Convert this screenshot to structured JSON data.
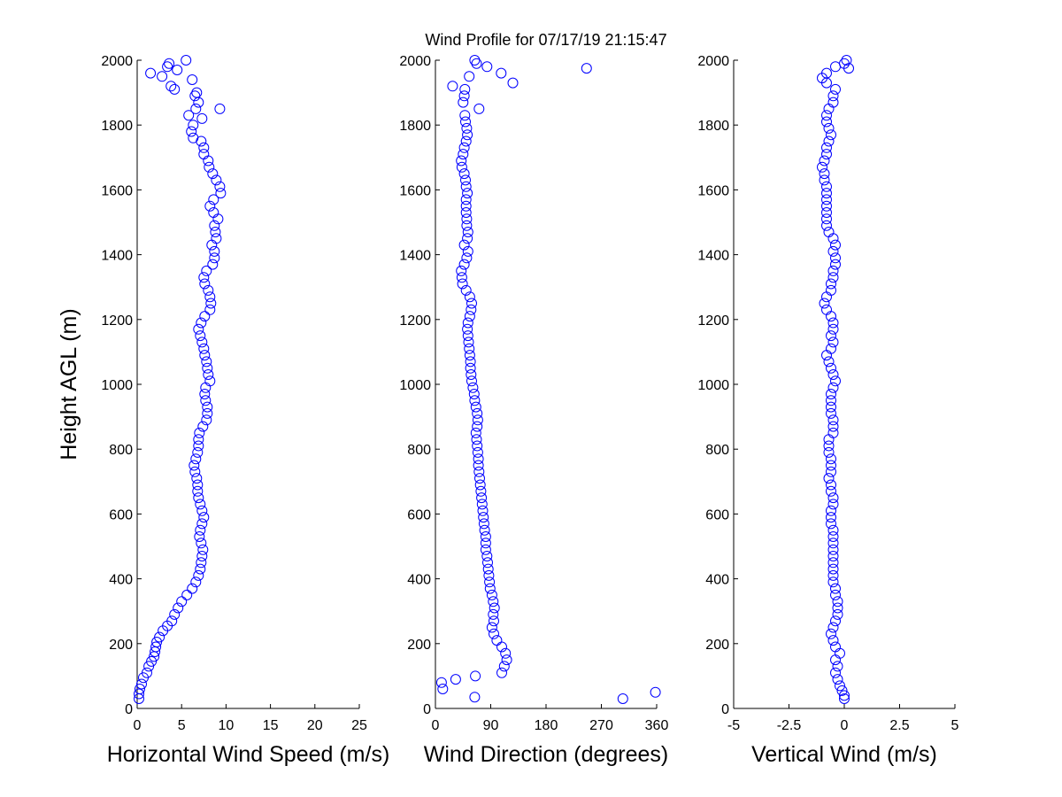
{
  "figure": {
    "title": "Wind Profile for  07/17/19 21:15:47"
  },
  "chart_data": [
    {
      "type": "scatter",
      "xlabel": "Horizontal Wind Speed (m/s)",
      "ylabel": "Height AGL (m)",
      "xlim": [
        0,
        25
      ],
      "ylim": [
        0,
        2000
      ],
      "xticks": [
        "0",
        "5",
        "10",
        "15",
        "20",
        "25"
      ],
      "yticks": [
        "0",
        "200",
        "400",
        "600",
        "800",
        "1000",
        "1200",
        "1400",
        "1600",
        "1800",
        "2000"
      ],
      "grid": false,
      "marker_color": "#0000ff",
      "points": [
        [
          0.2,
          30
        ],
        [
          0.2,
          45
        ],
        [
          0.3,
          60
        ],
        [
          0.5,
          75
        ],
        [
          0.7,
          95
        ],
        [
          1.1,
          110
        ],
        [
          1.3,
          130
        ],
        [
          1.6,
          145
        ],
        [
          1.9,
          160
        ],
        [
          2.0,
          175
        ],
        [
          2.1,
          190
        ],
        [
          2.2,
          205
        ],
        [
          2.5,
          220
        ],
        [
          2.9,
          240
        ],
        [
          3.4,
          255
        ],
        [
          3.9,
          270
        ],
        [
          4.2,
          290
        ],
        [
          4.6,
          310
        ],
        [
          5.0,
          330
        ],
        [
          5.6,
          350
        ],
        [
          6.2,
          370
        ],
        [
          6.6,
          390
        ],
        [
          6.9,
          410
        ],
        [
          7.1,
          430
        ],
        [
          7.2,
          450
        ],
        [
          7.3,
          470
        ],
        [
          7.4,
          490
        ],
        [
          7.2,
          510
        ],
        [
          7.0,
          530
        ],
        [
          7.1,
          550
        ],
        [
          7.3,
          570
        ],
        [
          7.5,
          590
        ],
        [
          7.3,
          610
        ],
        [
          7.1,
          630
        ],
        [
          6.9,
          650
        ],
        [
          6.8,
          670
        ],
        [
          6.8,
          690
        ],
        [
          6.7,
          710
        ],
        [
          6.5,
          730
        ],
        [
          6.4,
          750
        ],
        [
          6.6,
          770
        ],
        [
          6.8,
          790
        ],
        [
          6.9,
          810
        ],
        [
          6.9,
          830
        ],
        [
          7.0,
          850
        ],
        [
          7.4,
          870
        ],
        [
          7.8,
          890
        ],
        [
          7.9,
          910
        ],
        [
          7.9,
          930
        ],
        [
          7.7,
          950
        ],
        [
          7.6,
          970
        ],
        [
          7.7,
          990
        ],
        [
          8.2,
          1010
        ],
        [
          8.0,
          1030
        ],
        [
          7.9,
          1050
        ],
        [
          7.8,
          1070
        ],
        [
          7.6,
          1090
        ],
        [
          7.5,
          1110
        ],
        [
          7.3,
          1130
        ],
        [
          7.1,
          1150
        ],
        [
          6.9,
          1170
        ],
        [
          7.2,
          1190
        ],
        [
          7.6,
          1210
        ],
        [
          8.2,
          1230
        ],
        [
          8.3,
          1250
        ],
        [
          8.2,
          1270
        ],
        [
          8.0,
          1290
        ],
        [
          7.6,
          1310
        ],
        [
          7.5,
          1330
        ],
        [
          7.8,
          1350
        ],
        [
          8.5,
          1370
        ],
        [
          8.7,
          1390
        ],
        [
          8.7,
          1410
        ],
        [
          8.4,
          1430
        ],
        [
          8.9,
          1450
        ],
        [
          8.8,
          1470
        ],
        [
          8.7,
          1490
        ],
        [
          9.1,
          1510
        ],
        [
          8.6,
          1530
        ],
        [
          8.2,
          1550
        ],
        [
          8.6,
          1570
        ],
        [
          9.4,
          1590
        ],
        [
          9.3,
          1610
        ],
        [
          8.9,
          1630
        ],
        [
          8.5,
          1650
        ],
        [
          8.1,
          1670
        ],
        [
          8.0,
          1690
        ],
        [
          7.5,
          1710
        ],
        [
          7.5,
          1730
        ],
        [
          7.2,
          1750
        ],
        [
          6.3,
          1760
        ],
        [
          6.1,
          1780
        ],
        [
          6.3,
          1800
        ],
        [
          7.3,
          1820
        ],
        [
          5.8,
          1830
        ],
        [
          6.6,
          1850
        ],
        [
          9.3,
          1850
        ],
        [
          6.9,
          1870
        ],
        [
          6.5,
          1890
        ],
        [
          6.7,
          1900
        ],
        [
          4.2,
          1910
        ],
        [
          3.8,
          1920
        ],
        [
          6.2,
          1940
        ],
        [
          2.8,
          1950
        ],
        [
          1.5,
          1960
        ],
        [
          4.5,
          1970
        ],
        [
          3.4,
          1980
        ],
        [
          3.6,
          1990
        ],
        [
          5.5,
          2000
        ]
      ]
    },
    {
      "type": "scatter",
      "xlabel": "Wind Direction (degrees)",
      "ylabel": "",
      "xlim": [
        0,
        360
      ],
      "ylim": [
        0,
        2000
      ],
      "xticks": [
        "0",
        "90",
        "180",
        "270",
        "360"
      ],
      "yticks": [
        "0",
        "200",
        "400",
        "600",
        "800",
        "1000",
        "1200",
        "1400",
        "1600",
        "1800",
        "2000"
      ],
      "grid": false,
      "marker_color": "#0000ff",
      "points": [
        [
          64,
          35
        ],
        [
          305,
          30
        ],
        [
          358,
          50
        ],
        [
          12,
          60
        ],
        [
          10,
          80
        ],
        [
          33,
          90
        ],
        [
          65,
          100
        ],
        [
          108,
          110
        ],
        [
          112,
          130
        ],
        [
          116,
          150
        ],
        [
          114,
          170
        ],
        [
          108,
          190
        ],
        [
          100,
          210
        ],
        [
          95,
          230
        ],
        [
          92,
          250
        ],
        [
          95,
          270
        ],
        [
          94,
          290
        ],
        [
          96,
          310
        ],
        [
          94,
          330
        ],
        [
          92,
          350
        ],
        [
          89,
          370
        ],
        [
          88,
          390
        ],
        [
          87,
          410
        ],
        [
          86,
          430
        ],
        [
          85,
          450
        ],
        [
          84,
          470
        ],
        [
          82,
          490
        ],
        [
          82,
          510
        ],
        [
          82,
          530
        ],
        [
          80,
          550
        ],
        [
          79,
          570
        ],
        [
          78,
          590
        ],
        [
          77,
          610
        ],
        [
          76,
          630
        ],
        [
          75,
          650
        ],
        [
          74,
          670
        ],
        [
          73,
          690
        ],
        [
          72,
          710
        ],
        [
          71,
          730
        ],
        [
          70,
          750
        ],
        [
          70,
          770
        ],
        [
          69,
          790
        ],
        [
          68,
          810
        ],
        [
          67,
          830
        ],
        [
          66,
          850
        ],
        [
          68,
          870
        ],
        [
          69,
          890
        ],
        [
          68,
          910
        ],
        [
          66,
          930
        ],
        [
          64,
          950
        ],
        [
          63,
          970
        ],
        [
          61,
          990
        ],
        [
          59,
          1010
        ],
        [
          58,
          1030
        ],
        [
          57,
          1050
        ],
        [
          57,
          1070
        ],
        [
          56,
          1090
        ],
        [
          55,
          1110
        ],
        [
          54,
          1130
        ],
        [
          53,
          1150
        ],
        [
          52,
          1170
        ],
        [
          53,
          1190
        ],
        [
          56,
          1210
        ],
        [
          58,
          1230
        ],
        [
          59,
          1250
        ],
        [
          56,
          1270
        ],
        [
          50,
          1290
        ],
        [
          44,
          1310
        ],
        [
          43,
          1330
        ],
        [
          42,
          1350
        ],
        [
          47,
          1370
        ],
        [
          51,
          1390
        ],
        [
          53,
          1410
        ],
        [
          47,
          1430
        ],
        [
          52,
          1450
        ],
        [
          53,
          1470
        ],
        [
          51,
          1490
        ],
        [
          51,
          1510
        ],
        [
          50,
          1530
        ],
        [
          50,
          1550
        ],
        [
          50,
          1570
        ],
        [
          52,
          1590
        ],
        [
          50,
          1610
        ],
        [
          49,
          1630
        ],
        [
          47,
          1650
        ],
        [
          43,
          1670
        ],
        [
          42,
          1690
        ],
        [
          45,
          1710
        ],
        [
          47,
          1730
        ],
        [
          50,
          1750
        ],
        [
          52,
          1770
        ],
        [
          51,
          1790
        ],
        [
          49,
          1810
        ],
        [
          48,
          1830
        ],
        [
          71,
          1850
        ],
        [
          45,
          1870
        ],
        [
          47,
          1890
        ],
        [
          48,
          1910
        ],
        [
          28,
          1920
        ],
        [
          126,
          1930
        ],
        [
          55,
          1950
        ],
        [
          107,
          1960
        ],
        [
          246,
          1975
        ],
        [
          84,
          1980
        ],
        [
          67,
          1990
        ],
        [
          64,
          2000
        ]
      ]
    },
    {
      "type": "scatter",
      "xlabel": "Vertical Wind (m/s)",
      "ylabel": "",
      "xlim": [
        -5,
        5
      ],
      "ylim": [
        0,
        2000
      ],
      "xticks": [
        "-5",
        "-2.5",
        "0",
        "2.5",
        "5"
      ],
      "yticks": [
        "0",
        "200",
        "400",
        "600",
        "800",
        "1000",
        "1200",
        "1400",
        "1600",
        "1800",
        "2000"
      ],
      "grid": false,
      "marker_color": "#0000ff",
      "points": [
        [
          0,
          30
        ],
        [
          0,
          40
        ],
        [
          -0.1,
          55
        ],
        [
          -0.2,
          70
        ],
        [
          -0.3,
          90
        ],
        [
          -0.4,
          110
        ],
        [
          -0.3,
          130
        ],
        [
          -0.4,
          150
        ],
        [
          -0.2,
          170
        ],
        [
          -0.4,
          190
        ],
        [
          -0.5,
          210
        ],
        [
          -0.6,
          230
        ],
        [
          -0.5,
          250
        ],
        [
          -0.4,
          270
        ],
        [
          -0.3,
          290
        ],
        [
          -0.3,
          310
        ],
        [
          -0.3,
          330
        ],
        [
          -0.4,
          350
        ],
        [
          -0.4,
          370
        ],
        [
          -0.5,
          390
        ],
        [
          -0.5,
          410
        ],
        [
          -0.5,
          430
        ],
        [
          -0.5,
          450
        ],
        [
          -0.5,
          470
        ],
        [
          -0.5,
          490
        ],
        [
          -0.5,
          510
        ],
        [
          -0.5,
          530
        ],
        [
          -0.5,
          550
        ],
        [
          -0.6,
          570
        ],
        [
          -0.6,
          590
        ],
        [
          -0.6,
          610
        ],
        [
          -0.5,
          630
        ],
        [
          -0.5,
          650
        ],
        [
          -0.6,
          670
        ],
        [
          -0.6,
          690
        ],
        [
          -0.7,
          710
        ],
        [
          -0.6,
          730
        ],
        [
          -0.6,
          750
        ],
        [
          -0.6,
          770
        ],
        [
          -0.7,
          790
        ],
        [
          -0.7,
          810
        ],
        [
          -0.7,
          830
        ],
        [
          -0.5,
          850
        ],
        [
          -0.5,
          870
        ],
        [
          -0.5,
          890
        ],
        [
          -0.6,
          910
        ],
        [
          -0.6,
          930
        ],
        [
          -0.6,
          950
        ],
        [
          -0.6,
          970
        ],
        [
          -0.5,
          990
        ],
        [
          -0.4,
          1010
        ],
        [
          -0.5,
          1030
        ],
        [
          -0.6,
          1050
        ],
        [
          -0.7,
          1070
        ],
        [
          -0.8,
          1090
        ],
        [
          -0.6,
          1110
        ],
        [
          -0.5,
          1130
        ],
        [
          -0.6,
          1150
        ],
        [
          -0.5,
          1170
        ],
        [
          -0.5,
          1190
        ],
        [
          -0.6,
          1210
        ],
        [
          -0.8,
          1230
        ],
        [
          -0.9,
          1250
        ],
        [
          -0.8,
          1270
        ],
        [
          -0.6,
          1290
        ],
        [
          -0.6,
          1310
        ],
        [
          -0.5,
          1330
        ],
        [
          -0.5,
          1350
        ],
        [
          -0.4,
          1370
        ],
        [
          -0.4,
          1390
        ],
        [
          -0.5,
          1410
        ],
        [
          -0.4,
          1430
        ],
        [
          -0.5,
          1450
        ],
        [
          -0.7,
          1470
        ],
        [
          -0.8,
          1490
        ],
        [
          -0.8,
          1510
        ],
        [
          -0.8,
          1530
        ],
        [
          -0.8,
          1550
        ],
        [
          -0.8,
          1570
        ],
        [
          -0.8,
          1590
        ],
        [
          -0.8,
          1610
        ],
        [
          -0.9,
          1630
        ],
        [
          -0.9,
          1650
        ],
        [
          -1.0,
          1670
        ],
        [
          -0.9,
          1690
        ],
        [
          -0.8,
          1710
        ],
        [
          -0.8,
          1730
        ],
        [
          -0.7,
          1750
        ],
        [
          -0.6,
          1770
        ],
        [
          -0.7,
          1790
        ],
        [
          -0.8,
          1810
        ],
        [
          -0.8,
          1830
        ],
        [
          -0.7,
          1850
        ],
        [
          -0.5,
          1870
        ],
        [
          -0.5,
          1890
        ],
        [
          -0.4,
          1910
        ],
        [
          -0.8,
          1930
        ],
        [
          -1.0,
          1945
        ],
        [
          -0.8,
          1960
        ],
        [
          -0.4,
          1980
        ],
        [
          0.2,
          1975
        ],
        [
          0.0,
          1990
        ],
        [
          0.1,
          2000
        ]
      ]
    }
  ]
}
